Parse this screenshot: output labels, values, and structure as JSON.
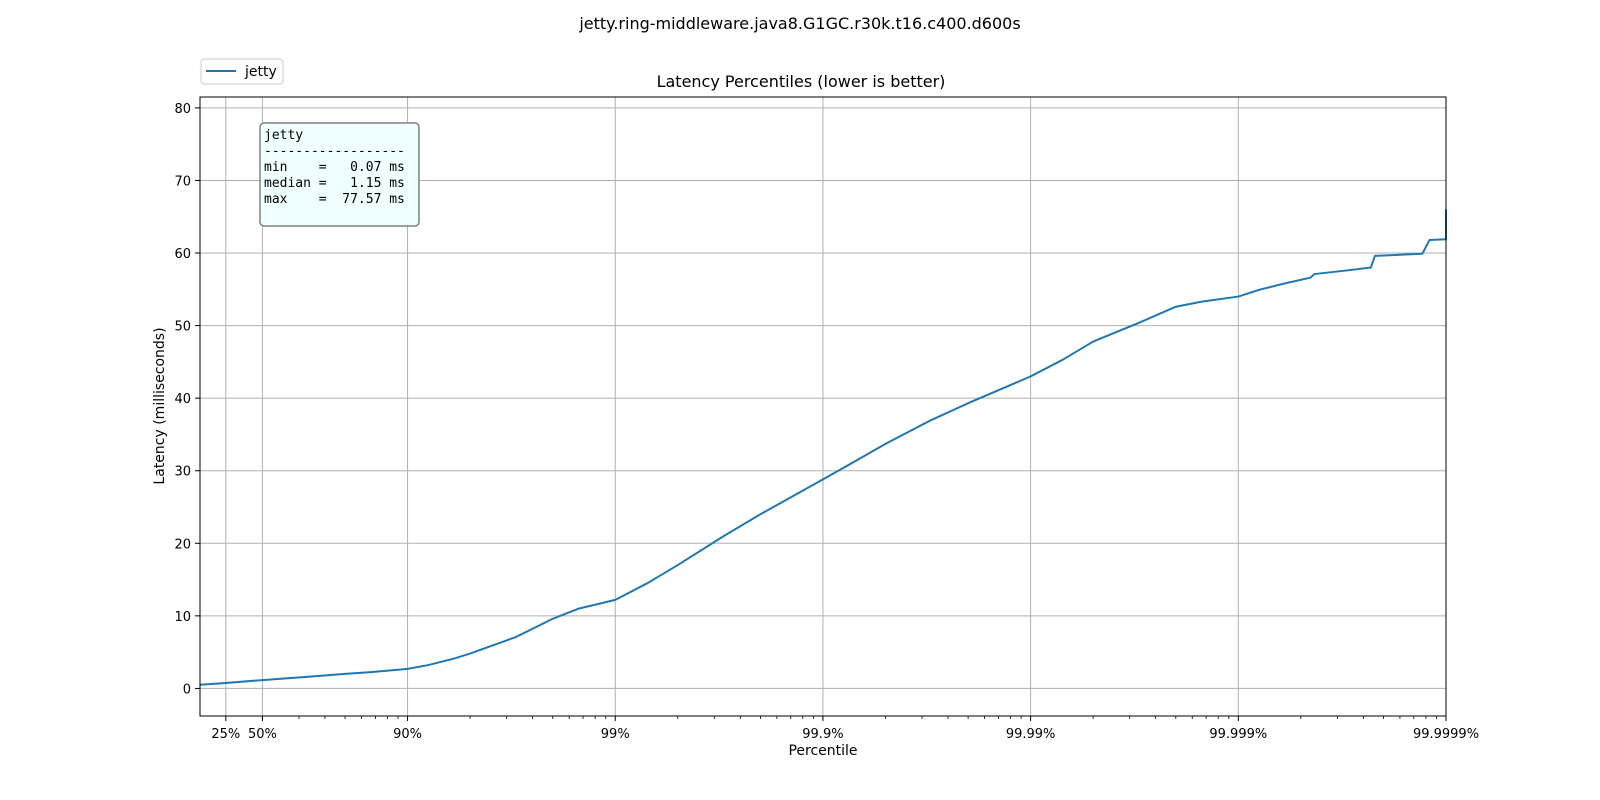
{
  "chart_data": {
    "type": "line",
    "suptitle": "jetty.ring-middleware.java8.G1GC.r30k.t16.c400.d600s",
    "title": "Latency Percentiles (lower is better)",
    "xlabel": "Percentile",
    "ylabel": "Latency (milliseconds)",
    "x_scale": "log_inverse_percentile",
    "x_range": [
      0.14,
      99.9999
    ],
    "ylim": [
      -3.8,
      81.5
    ],
    "grid": true,
    "legend_placement": "upper-left, above axes",
    "x_tick_labels": [
      {
        "pct": 25,
        "label": "25%"
      },
      {
        "pct": 50,
        "label": "50%"
      },
      {
        "pct": 90,
        "label": "90%"
      },
      {
        "pct": 99,
        "label": "99%"
      },
      {
        "pct": 99.9,
        "label": "99.9%"
      },
      {
        "pct": 99.99,
        "label": "99.99%"
      },
      {
        "pct": 99.999,
        "label": "99.999%"
      },
      {
        "pct": 99.9999,
        "label": "99.9999%"
      }
    ],
    "y_ticks": [
      0,
      10,
      20,
      30,
      40,
      50,
      60,
      70,
      80
    ],
    "series": [
      {
        "name": "jetty",
        "color": "#1f77b4",
        "points": [
          [
            0.14,
            0.5
          ],
          [
            25,
            0.75
          ],
          [
            50,
            1.15
          ],
          [
            60,
            1.35
          ],
          [
            70,
            1.6
          ],
          [
            80,
            2.0
          ],
          [
            85,
            2.25
          ],
          [
            90,
            2.7
          ],
          [
            92,
            3.2
          ],
          [
            94,
            4.1
          ],
          [
            95,
            4.8
          ],
          [
            96,
            5.8
          ],
          [
            97,
            7.1
          ],
          [
            98,
            9.6
          ],
          [
            98.5,
            11.0
          ],
          [
            99,
            12.2
          ],
          [
            99.3,
            14.5
          ],
          [
            99.5,
            17.0
          ],
          [
            99.7,
            21.0
          ],
          [
            99.8,
            24.0
          ],
          [
            99.9,
            28.8
          ],
          [
            99.93,
            31.3
          ],
          [
            99.95,
            33.7
          ],
          [
            99.97,
            37.0
          ],
          [
            99.98,
            39.3
          ],
          [
            99.99,
            43.0
          ],
          [
            99.993,
            45.3
          ],
          [
            99.995,
            47.8
          ],
          [
            99.997,
            50.4
          ],
          [
            99.998,
            52.6
          ],
          [
            99.9985,
            53.3
          ],
          [
            99.999,
            54.0
          ],
          [
            99.9992,
            54.9
          ],
          [
            99.9994,
            55.8
          ],
          [
            99.99955,
            56.6
          ],
          [
            99.99957,
            57.1
          ],
          [
            99.9997,
            57.6
          ],
          [
            99.99977,
            58.0
          ],
          [
            99.99978,
            59.6
          ],
          [
            99.99987,
            59.9
          ],
          [
            99.99988,
            61.8
          ],
          [
            99.9999,
            61.9
          ],
          [
            99.9999,
            66.0
          ]
        ]
      }
    ],
    "legend": [
      {
        "label": "jetty",
        "color": "#1f77b4"
      }
    ],
    "stats_box": {
      "lines": [
        "jetty",
        "------------------",
        "min    =   0.07 ms",
        "median =   1.15 ms",
        "max    =  77.57 ms"
      ]
    }
  },
  "colors": {
    "line": "#1f77b4",
    "grid": "#b0b0b0",
    "stats_box_bg": "#f0ffff",
    "stats_box_border": "#808080"
  }
}
